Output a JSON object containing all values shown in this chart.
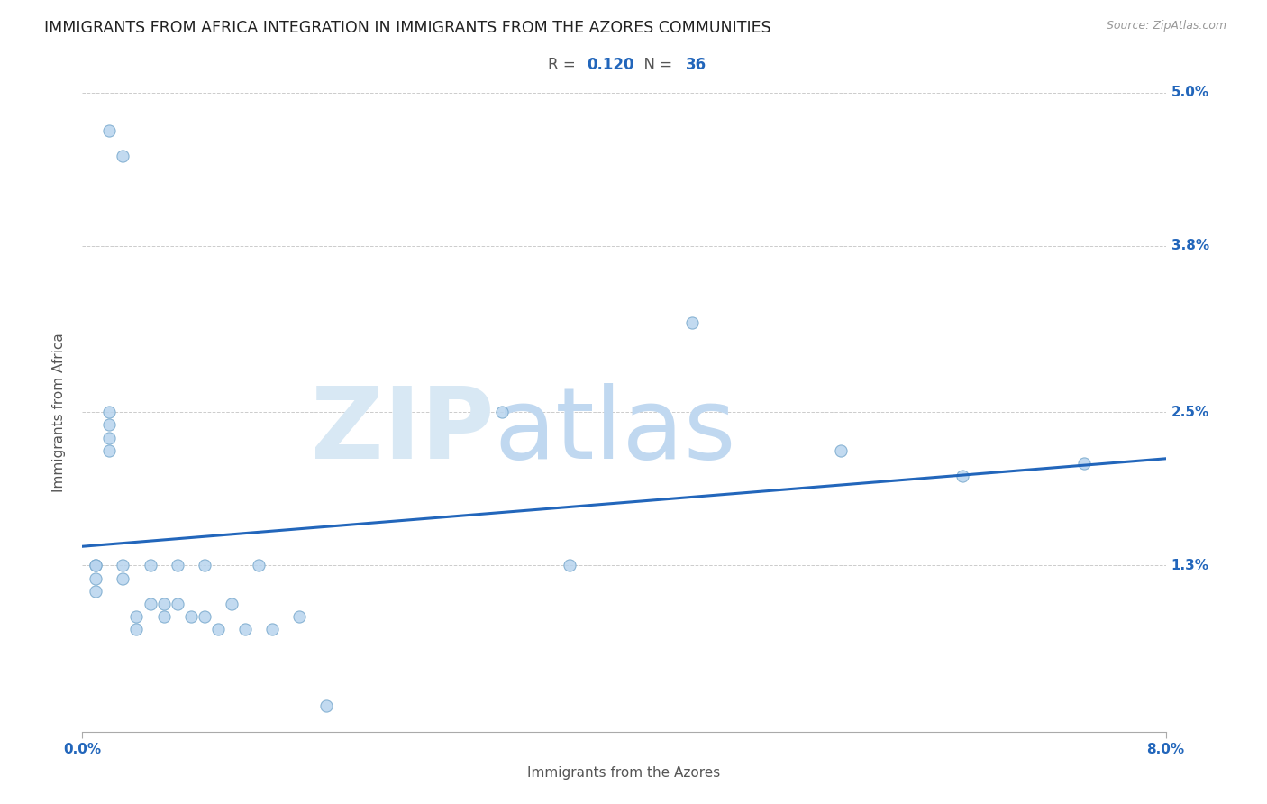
{
  "title": "IMMIGRANTS FROM AFRICA INTEGRATION IN IMMIGRANTS FROM THE AZORES COMMUNITIES",
  "source": "Source: ZipAtlas.com",
  "xlabel": "Immigrants from the Azores",
  "ylabel": "Immigrants from Africa",
  "R": 0.12,
  "N": 36,
  "xlim": [
    0.0,
    0.08
  ],
  "ylim": [
    0.0,
    0.05
  ],
  "ytick_vals": [
    0.013,
    0.025,
    0.038,
    0.05
  ],
  "ytick_labels": [
    "1.3%",
    "2.5%",
    "3.8%",
    "5.0%"
  ],
  "xtick_vals": [
    0.0,
    0.08
  ],
  "xtick_labels": [
    "0.0%",
    "8.0%"
  ],
  "scatter_color": "#b8d4ee",
  "scatter_edge_color": "#7aaace",
  "line_color": "#2266bb",
  "grid_color": "#cccccc",
  "background_color": "#ffffff",
  "watermark_zip_color": "#d8e8f4",
  "watermark_atlas_color": "#c0d8f0",
  "scatter_x": [
    0.002,
    0.003,
    0.001,
    0.001,
    0.001,
    0.001,
    0.002,
    0.002,
    0.002,
    0.002,
    0.003,
    0.003,
    0.004,
    0.004,
    0.005,
    0.005,
    0.006,
    0.006,
    0.007,
    0.007,
    0.008,
    0.009,
    0.009,
    0.01,
    0.011,
    0.012,
    0.013,
    0.014,
    0.016,
    0.018,
    0.031,
    0.036,
    0.045,
    0.056,
    0.065,
    0.074
  ],
  "scatter_y": [
    0.047,
    0.045,
    0.013,
    0.013,
    0.012,
    0.011,
    0.024,
    0.023,
    0.025,
    0.022,
    0.013,
    0.012,
    0.009,
    0.008,
    0.013,
    0.01,
    0.01,
    0.009,
    0.013,
    0.01,
    0.009,
    0.013,
    0.009,
    0.008,
    0.01,
    0.008,
    0.013,
    0.008,
    0.009,
    0.002,
    0.025,
    0.013,
    0.032,
    0.022,
    0.02,
    0.021
  ],
  "title_fontsize": 12.5,
  "label_fontsize": 11,
  "tick_fontsize": 11,
  "stat_fontsize": 12,
  "source_fontsize": 9
}
